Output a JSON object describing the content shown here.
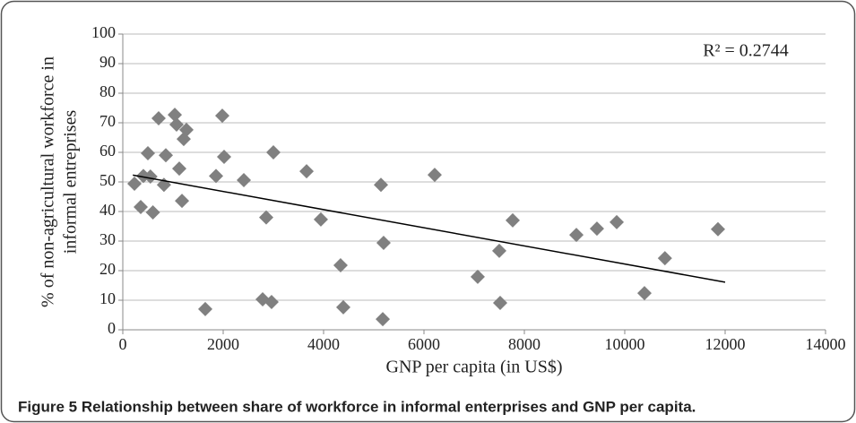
{
  "chart_data": {
    "type": "scatter",
    "xlabel": "GNP per capita  (in US$)",
    "ylabel": [
      "% of non-agricultural workforce in",
      "informal entreprises"
    ],
    "annotation": "R² = 0.2744",
    "caption": "Figure 5 Relationship between share of workforce in informal enterprises and GNP per capita.",
    "color": "#808080",
    "x": [
      232,
      357,
      410,
      500,
      550,
      600,
      714,
      820,
      857,
      1036,
      1071,
      1125,
      1179,
      1214,
      1268,
      1643,
      1857,
      1982,
      2018,
      2411,
      2786,
      2857,
      2964,
      3000,
      3661,
      3946,
      4339,
      4393,
      5143,
      5179,
      5196,
      6214,
      7071,
      7500,
      7518,
      7768,
      9036,
      9446,
      9840,
      10393,
      10800,
      11857
    ],
    "values": [
      49.4,
      41.5,
      52,
      59.7,
      51.8,
      39.7,
      71.5,
      49,
      59,
      72.7,
      69.4,
      54.5,
      43.6,
      64.5,
      67.6,
      7,
      52,
      72.4,
      58.5,
      50.6,
      10.3,
      38,
      9.4,
      60,
      53.6,
      37.3,
      21.8,
      7.6,
      49,
      3.6,
      29.4,
      52.4,
      17.9,
      26.7,
      9.1,
      37,
      32.1,
      34.2,
      36.4,
      12.4,
      24.2,
      34
    ],
    "trendline": {
      "x": [
        200,
        12000
      ],
      "values": [
        52.3,
        16.1
      ]
    },
    "xlim": [
      0,
      14000
    ],
    "xticks": [
      0,
      2000,
      4000,
      6000,
      8000,
      10000,
      12000,
      14000
    ],
    "ylim": [
      0,
      100
    ],
    "yticks": [
      0,
      10,
      20,
      30,
      40,
      50,
      60,
      70,
      80,
      90,
      100
    ],
    "grid": true
  }
}
